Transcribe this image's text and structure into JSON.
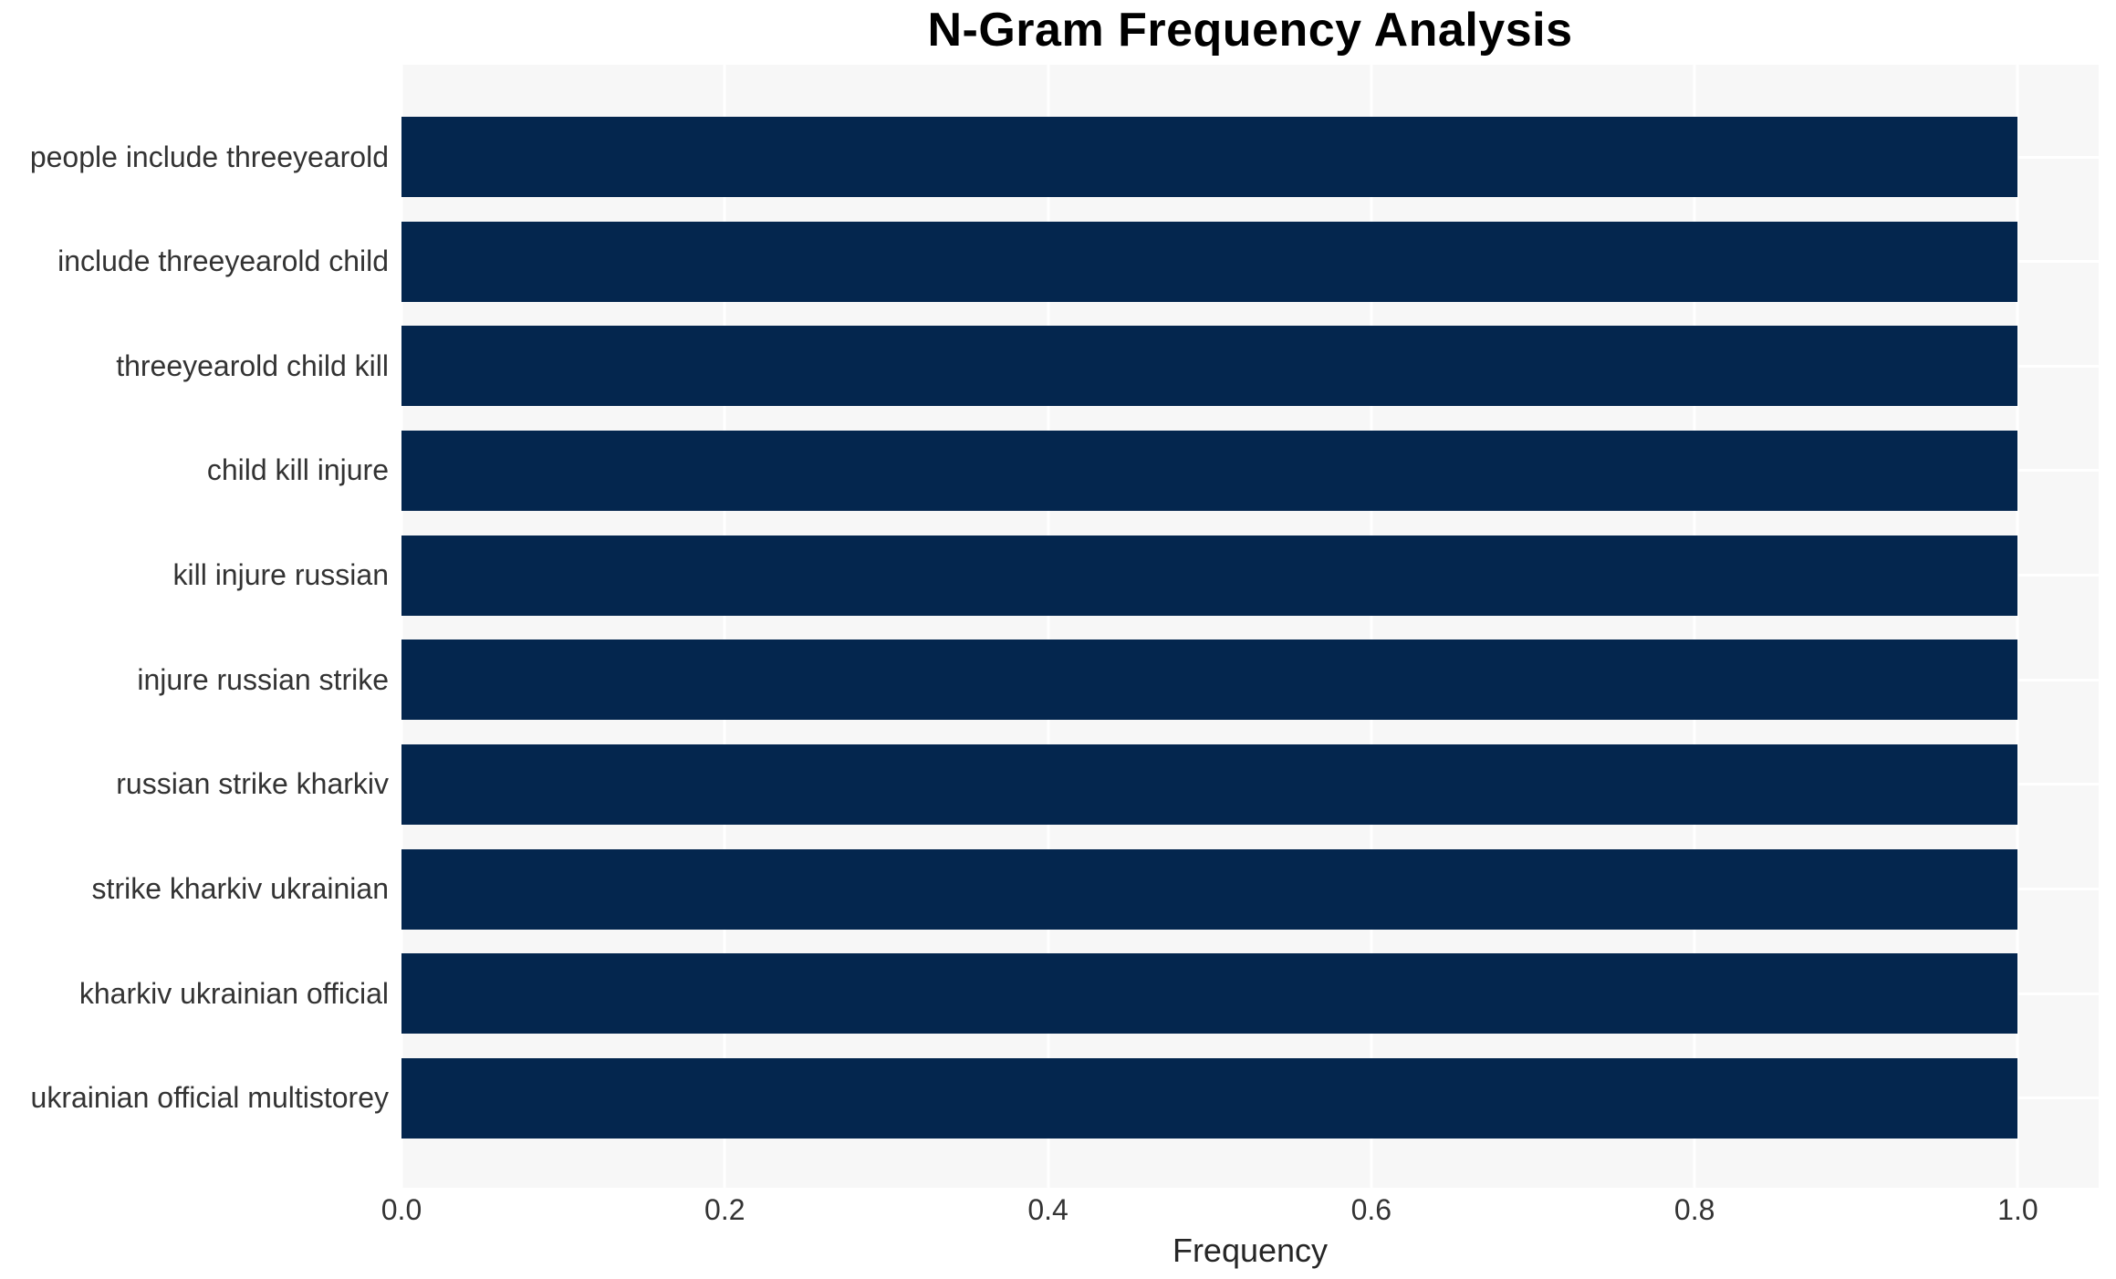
{
  "chart_data": {
    "type": "bar",
    "orientation": "horizontal",
    "title": "N-Gram Frequency Analysis",
    "xlabel": "Frequency",
    "ylabel": "",
    "categories": [
      "people include threeyearold",
      "include threeyearold child",
      "threeyearold child kill",
      "child kill injure",
      "kill injure russian",
      "injure russian strike",
      "russian strike kharkiv",
      "strike kharkiv ukrainian",
      "kharkiv ukrainian official",
      "ukrainian official multistorey"
    ],
    "values": [
      1.0,
      1.0,
      1.0,
      1.0,
      1.0,
      1.0,
      1.0,
      1.0,
      1.0,
      1.0
    ],
    "xticks": [
      "0.0",
      "0.2",
      "0.4",
      "0.6",
      "0.8",
      "1.0"
    ],
    "xlim": [
      0,
      1.05
    ],
    "grid": true,
    "legend": null,
    "colors": {
      "bar": "#04264e",
      "plot_background": "#f7f7f7",
      "gridline": "#ffffff",
      "title_text": "#000000",
      "tick_text": "#333333"
    }
  }
}
